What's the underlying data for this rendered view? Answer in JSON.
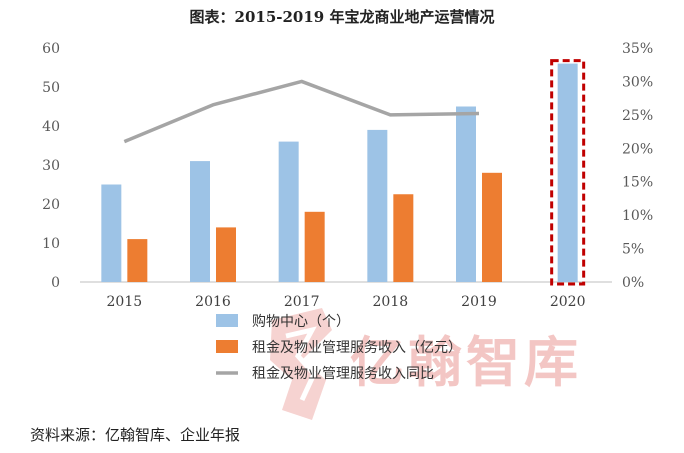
{
  "title": "图表：2015-2019 年宝龙商业地产运营情况",
  "source": "资料来源：亿翰智库、企业年报",
  "watermark": {
    "text": "亿翰智库"
  },
  "colors": {
    "bar1": "#9dc3e6",
    "bar2": "#ed7d31",
    "line": "#a5a5a5",
    "highlight": "#c00000",
    "axis": "#bfbfbf"
  },
  "chart_data": {
    "type": "bar",
    "categories": [
      "2015",
      "2016",
      "2017",
      "2018",
      "2019",
      "2020"
    ],
    "series": [
      {
        "name": "购物中心（个）",
        "type": "bar",
        "axis": "left",
        "values": [
          25,
          31,
          36,
          39,
          45,
          56
        ]
      },
      {
        "name": "租金及物业管理服务收入（亿元）",
        "type": "bar",
        "axis": "left",
        "values": [
          11,
          14,
          18,
          22.5,
          28,
          null
        ]
      },
      {
        "name": "租金及物业管理服务收入同比",
        "type": "line",
        "axis": "right",
        "values": [
          0.21,
          0.265,
          0.3,
          0.25,
          0.252,
          null
        ]
      }
    ],
    "ylim_left": [
      0,
      60
    ],
    "ylim_right": [
      0,
      0.35
    ],
    "yticks_left": [
      "0",
      "10",
      "20",
      "30",
      "40",
      "50",
      "60"
    ],
    "yticks_right": [
      "0%",
      "5%",
      "10%",
      "15%",
      "20%",
      "25%",
      "30%",
      "35%"
    ],
    "highlighted_category": "2020",
    "grid": false,
    "legend_position": "bottom"
  }
}
